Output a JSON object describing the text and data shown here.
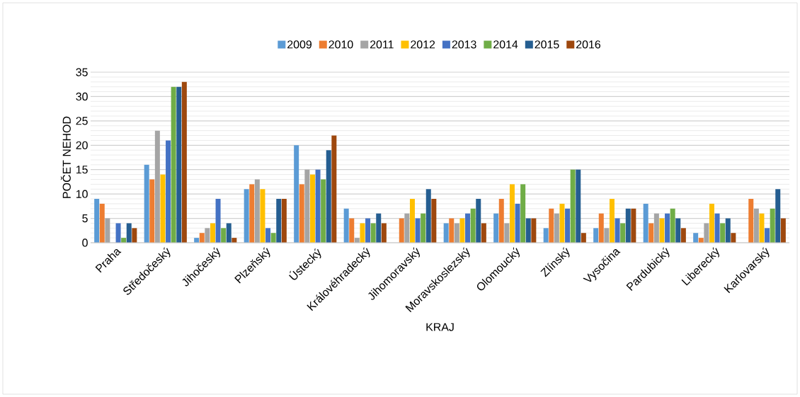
{
  "chart_data": {
    "type": "bar",
    "xlabel": "KRAJ",
    "ylabel": "POČET NEHOD",
    "categories": [
      "Praha",
      "Středočeský",
      "Jihočeský",
      "Plzeňský",
      "Ústecký",
      "Královéhradecký",
      "Jihomoravský",
      "Moravskoslezský",
      "Olomoucký",
      "Zlínský",
      "Vysočina",
      "Pardubický",
      "Liberecký",
      "Karlovarský"
    ],
    "series": [
      {
        "name": "2009",
        "color": "#5b9bd5",
        "values": [
          9,
          16,
          1,
          11,
          20,
          7,
          0,
          4,
          6,
          3,
          3,
          8,
          2,
          0
        ]
      },
      {
        "name": "2010",
        "color": "#ed7d31",
        "values": [
          8,
          13,
          2,
          12,
          12,
          5,
          5,
          5,
          9,
          7,
          6,
          4,
          1,
          9
        ]
      },
      {
        "name": "2011",
        "color": "#a5a5a5",
        "values": [
          5,
          23,
          3,
          13,
          15,
          1,
          6,
          4,
          4,
          6,
          3,
          6,
          4,
          7
        ]
      },
      {
        "name": "2012",
        "color": "#ffc000",
        "values": [
          0,
          14,
          4,
          11,
          14,
          4,
          9,
          5,
          12,
          8,
          9,
          5,
          8,
          6
        ]
      },
      {
        "name": "2013",
        "color": "#4472c4",
        "values": [
          4,
          21,
          9,
          3,
          15,
          5,
          5,
          6,
          8,
          7,
          5,
          6,
          6,
          3
        ]
      },
      {
        "name": "2014",
        "color": "#70ad47",
        "values": [
          1,
          32,
          3,
          2,
          13,
          4,
          6,
          7,
          12,
          15,
          4,
          7,
          4,
          7
        ]
      },
      {
        "name": "2015",
        "color": "#255e91",
        "values": [
          4,
          32,
          4,
          9,
          19,
          6,
          11,
          9,
          5,
          15,
          7,
          5,
          5,
          11
        ]
      },
      {
        "name": "2016",
        "color": "#9e480e",
        "values": [
          3,
          33,
          1,
          9,
          22,
          4,
          9,
          4,
          5,
          2,
          7,
          3,
          2,
          5
        ]
      }
    ],
    "ylim": [
      0,
      35
    ],
    "yticks": [
      0,
      5,
      10,
      15,
      20,
      25,
      30,
      35
    ],
    "grid": "y",
    "legend": "top"
  }
}
